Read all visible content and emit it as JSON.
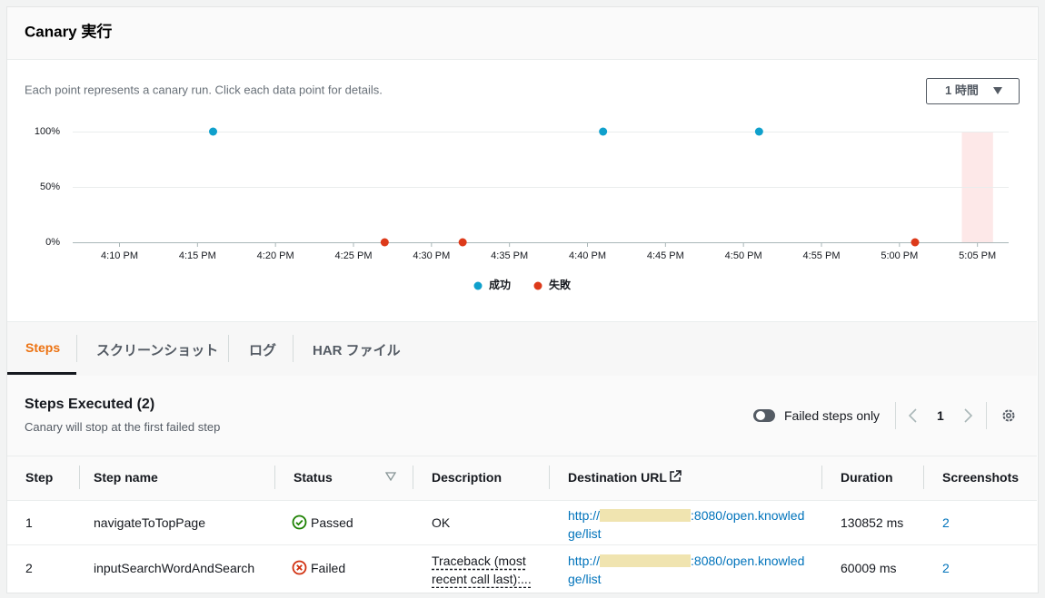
{
  "header": {
    "title": "Canary 実行"
  },
  "range_selector": {
    "label": "1 時間"
  },
  "chart_data": {
    "type": "scatter",
    "subtitle": "Each point represents a canary run. Click each data point for details.",
    "xlim": [
      "4:07 PM",
      "5:07 PM"
    ],
    "xticks": [
      "4:10 PM",
      "4:15 PM",
      "4:20 PM",
      "4:25 PM",
      "4:30 PM",
      "4:35 PM",
      "4:40 PM",
      "4:45 PM",
      "4:50 PM",
      "4:55 PM",
      "5:00 PM",
      "5:05 PM"
    ],
    "ylim": [
      0,
      100
    ],
    "yticks": [
      {
        "value": 0,
        "label": "0%"
      },
      {
        "value": 50,
        "label": "50%"
      },
      {
        "value": 100,
        "label": "100%"
      }
    ],
    "grid": true,
    "highlight": {
      "x": [
        "5:04 PM",
        "5:06 PM"
      ],
      "color": "#fde8e8"
    },
    "legend": "bottom",
    "series": [
      {
        "name": "成功",
        "color": "#0fa0cc",
        "x": [
          "4:16 PM",
          "4:41 PM",
          "4:51 PM"
        ],
        "values": [
          100,
          100,
          100
        ]
      },
      {
        "name": "失敗",
        "color": "#dd3a1a",
        "x": [
          "4:27 PM",
          "4:32 PM",
          "5:01 PM"
        ],
        "values": [
          0,
          0,
          0
        ]
      }
    ]
  },
  "tabs": [
    "Steps",
    "スクリーンショット",
    "ログ",
    "HAR ファイル"
  ],
  "steps": {
    "title": "Steps Executed (2)",
    "subtitle": "Canary will stop at the first failed step",
    "toggle": "Failed steps only",
    "page": 1,
    "columns": [
      "Step",
      "Step name",
      "Status",
      "Description",
      "Destination URL",
      "Duration",
      "Screenshots"
    ],
    "rows": [
      [
        1,
        "navigateToTopPage",
        "Passed",
        "OK",
        {
          "prefix": "http://",
          "suffix": ":8080/open.knowledge/list"
        },
        "130852 ms",
        2
      ],
      [
        2,
        "inputSearchWordAndSearch",
        "Failed",
        "Traceback (most recent call last):...",
        {
          "prefix": "http://",
          "suffix": ":8080/open.knowledge/list"
        },
        "60009 ms",
        2
      ]
    ]
  }
}
